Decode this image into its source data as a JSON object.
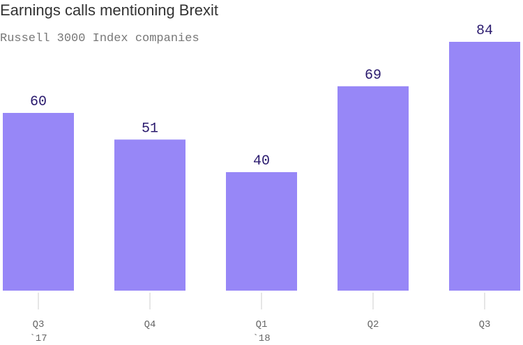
{
  "chart_data": {
    "type": "bar",
    "title": "Earnings calls mentioning Brexit",
    "subtitle": "Russell 3000 Index companies",
    "categories": [
      "Q3",
      "Q4",
      "Q1",
      "Q2",
      "Q3"
    ],
    "category_sublabels": [
      "`17",
      "",
      "`18",
      "",
      ""
    ],
    "values": [
      60,
      51,
      40,
      69,
      84
    ],
    "ylim": [
      0,
      84
    ],
    "grid": false,
    "legend": "none",
    "colors": {
      "bar": "#9787f7",
      "value_label": "#2a1a6e",
      "tick": "#cccccc"
    }
  }
}
